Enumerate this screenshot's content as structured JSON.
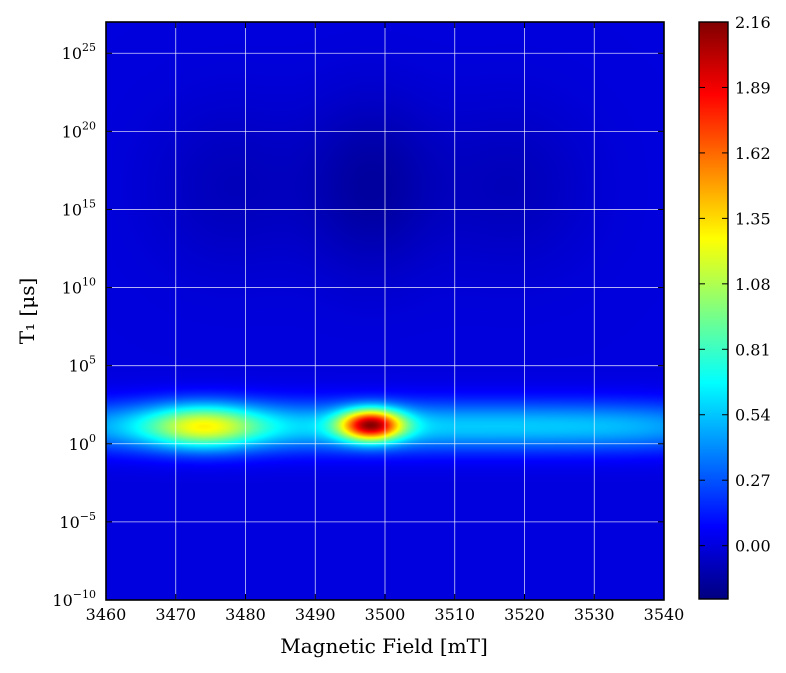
{
  "chart_data": {
    "type": "heatmap",
    "title": "",
    "xlabel": "Magnetic Field [mT]",
    "ylabel": "T₁ [μs]",
    "xlim": [
      3460,
      3540
    ],
    "ylim_log10": [
      -10,
      27
    ],
    "y_scale": "log",
    "grid": true,
    "colormap": "jet",
    "x_ticks": [
      {
        "value": 3460,
        "label": "3460"
      },
      {
        "value": 3470,
        "label": "3470"
      },
      {
        "value": 3480,
        "label": "3480"
      },
      {
        "value": 3490,
        "label": "3490"
      },
      {
        "value": 3500,
        "label": "3500"
      },
      {
        "value": 3510,
        "label": "3510"
      },
      {
        "value": 3520,
        "label": "3520"
      },
      {
        "value": 3530,
        "label": "3530"
      },
      {
        "value": 3540,
        "label": "3540"
      }
    ],
    "y_ticks": [
      {
        "exp": -10,
        "label_base": "10",
        "label_exp": "−10"
      },
      {
        "exp": -5,
        "label_base": "10",
        "label_exp": "−5"
      },
      {
        "exp": 0,
        "label_base": "10",
        "label_exp": "0"
      },
      {
        "exp": 5,
        "label_base": "10",
        "label_exp": "5"
      },
      {
        "exp": 10,
        "label_base": "10",
        "label_exp": "10"
      },
      {
        "exp": 15,
        "label_base": "10",
        "label_exp": "15"
      },
      {
        "exp": 20,
        "label_base": "10",
        "label_exp": "20"
      },
      {
        "exp": 25,
        "label_base": "10",
        "label_exp": "25"
      }
    ],
    "colorbar": {
      "min": -0.22,
      "max": 2.16,
      "ticks": [
        "0.00",
        "0.27",
        "0.54",
        "0.81",
        "1.08",
        "1.35",
        "1.62",
        "1.89",
        "2.16"
      ]
    },
    "features": [
      {
        "name": "band",
        "x_center": 3500,
        "x_width": 52,
        "log10_y_center": 1.1,
        "log10_y_width": 1.6,
        "value": 0.55
      },
      {
        "name": "left-lobe",
        "x_center": 3474,
        "x_width": 8,
        "log10_y_center": 1.1,
        "log10_y_width": 1.4,
        "value": 0.75
      },
      {
        "name": "peak",
        "x_center": 3498,
        "x_width": 4.5,
        "log10_y_center": 1.2,
        "log10_y_width": 1.0,
        "value": 1.6
      },
      {
        "name": "dark-dip",
        "x_center": 3498,
        "x_width": 9,
        "log10_y_center": 16.5,
        "log10_y_width": 5.5,
        "value": -0.14
      },
      {
        "name": "dark-left",
        "x_center": 3478,
        "x_width": 12,
        "log10_y_center": 16.5,
        "log10_y_width": 5.5,
        "value": -0.08
      },
      {
        "name": "dark-right",
        "x_center": 3518,
        "x_width": 12,
        "log10_y_center": 16.5,
        "log10_y_width": 5.5,
        "value": -0.08
      }
    ]
  }
}
